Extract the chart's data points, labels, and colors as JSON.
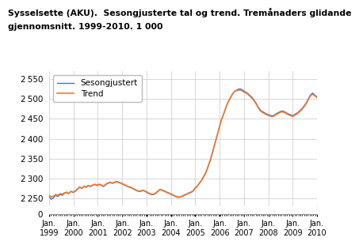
{
  "title_line1": "Sysselsette (AKU).  Sesongjusterte tal og trend. Tremånaders glidande",
  "title_line2": "gjennomsnitt. 1999-2010. 1 000",
  "legend_labels": [
    "Sesongjustert",
    "Trend"
  ],
  "line_colors": [
    "#4472C4",
    "#ED7D31"
  ],
  "x_tick_labels": [
    "Jan.\n1999",
    "Jan.\n2000",
    "Jan.\n2001",
    "Jan.\n2002",
    "Jan.\n2003",
    "Jan.\n2004",
    "Jan.\n2005",
    "Jan.\n2006",
    "Jan.\n2007",
    "Jan.\n2008",
    "Jan.\n2009",
    "Jan.\n2010"
  ],
  "yticks_main": [
    2250,
    2300,
    2350,
    2400,
    2450,
    2500,
    2550
  ],
  "yticks_break": [
    0
  ],
  "ylim_main": [
    2230,
    2570
  ],
  "ylim_break": [
    0,
    15
  ],
  "background_color": "#ffffff",
  "grid_color": "#d0d0d0",
  "sesongjustert": [
    2255,
    2248,
    2252,
    2258,
    2255,
    2260,
    2258,
    2263,
    2265,
    2262,
    2268,
    2265,
    2268,
    2273,
    2278,
    2275,
    2280,
    2278,
    2282,
    2280,
    2283,
    2285,
    2283,
    2285,
    2283,
    2280,
    2285,
    2288,
    2290,
    2288,
    2290,
    2292,
    2290,
    2288,
    2285,
    2283,
    2280,
    2278,
    2276,
    2273,
    2270,
    2268,
    2268,
    2270,
    2268,
    2265,
    2262,
    2260,
    2260,
    2263,
    2268,
    2272,
    2270,
    2268,
    2265,
    2263,
    2260,
    2258,
    2255,
    2253,
    2253,
    2255,
    2258,
    2260,
    2263,
    2265,
    2268,
    2275,
    2280,
    2288,
    2295,
    2305,
    2315,
    2330,
    2345,
    2365,
    2385,
    2405,
    2425,
    2445,
    2460,
    2475,
    2490,
    2500,
    2510,
    2518,
    2522,
    2525,
    2525,
    2522,
    2518,
    2515,
    2510,
    2505,
    2498,
    2490,
    2480,
    2472,
    2468,
    2465,
    2462,
    2460,
    2458,
    2458,
    2462,
    2465,
    2468,
    2470,
    2468,
    2465,
    2462,
    2460,
    2458,
    2462,
    2465,
    2470,
    2475,
    2482,
    2490,
    2500,
    2510,
    2515,
    2510,
    2505
  ],
  "trend": [
    2258,
    2254,
    2256,
    2260,
    2258,
    2262,
    2261,
    2264,
    2266,
    2263,
    2268,
    2266,
    2269,
    2274,
    2279,
    2276,
    2281,
    2279,
    2283,
    2281,
    2284,
    2286,
    2284,
    2286,
    2284,
    2281,
    2286,
    2289,
    2291,
    2289,
    2291,
    2293,
    2291,
    2289,
    2286,
    2284,
    2281,
    2279,
    2277,
    2274,
    2271,
    2269,
    2269,
    2271,
    2269,
    2266,
    2263,
    2261,
    2261,
    2264,
    2269,
    2273,
    2271,
    2269,
    2266,
    2264,
    2261,
    2259,
    2256,
    2254,
    2254,
    2256,
    2259,
    2261,
    2264,
    2266,
    2269,
    2276,
    2281,
    2289,
    2296,
    2306,
    2316,
    2331,
    2346,
    2366,
    2386,
    2406,
    2426,
    2446,
    2461,
    2476,
    2491,
    2501,
    2511,
    2519,
    2521,
    2522,
    2522,
    2519,
    2516,
    2513,
    2508,
    2503,
    2496,
    2488,
    2478,
    2470,
    2466,
    2463,
    2460,
    2458,
    2456,
    2456,
    2460,
    2463,
    2466,
    2468,
    2466,
    2463,
    2460,
    2458,
    2456,
    2460,
    2463,
    2468,
    2473,
    2480,
    2488,
    2498,
    2508,
    2512,
    2508,
    2503
  ]
}
